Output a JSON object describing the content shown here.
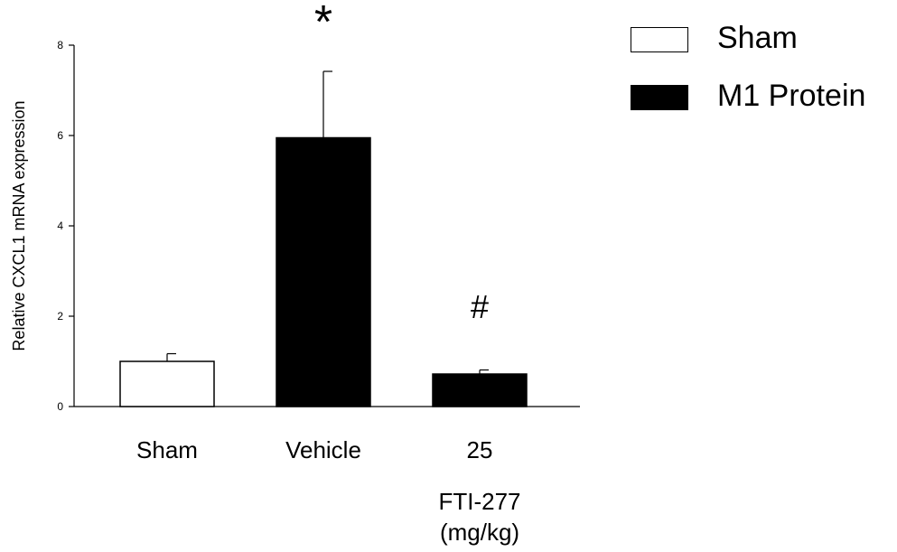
{
  "chart_data": {
    "type": "bar",
    "ylabel": "Relative CXCL1 mRNA expression",
    "ylim": [
      0,
      8
    ],
    "yticks": [
      0,
      2,
      4,
      6,
      8
    ],
    "categories": [
      "Sham",
      "Vehicle",
      "25"
    ],
    "values": [
      1.0,
      5.95,
      0.72
    ],
    "errors": [
      0.17,
      1.47,
      0.09
    ],
    "group": "M1 Protein",
    "bar_colors": [
      "#ffffff",
      "#000000",
      "#000000"
    ],
    "annotations": [
      "",
      "*",
      "#"
    ],
    "xlabel_lines": [
      "FTI-277",
      "(mg/kg)"
    ],
    "legend_position": "top-right",
    "legend": [
      {
        "label": "Sham",
        "color": "#ffffff"
      },
      {
        "label": "M1 Protein",
        "color": "#000000"
      }
    ],
    "grid": false
  }
}
